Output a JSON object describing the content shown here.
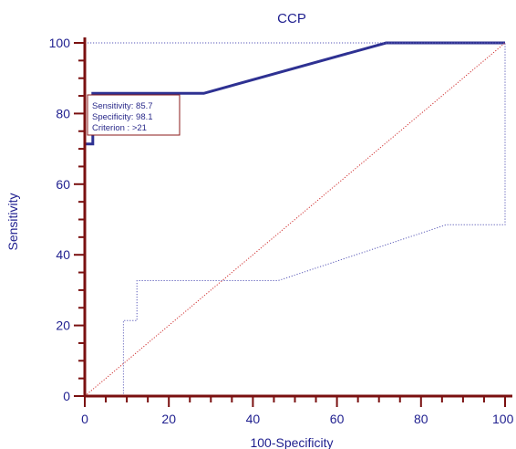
{
  "chart_data": {
    "type": "line",
    "title": "CCP",
    "xlabel": "100-Specificity",
    "ylabel": "Sensitivity",
    "xlim": [
      0,
      100
    ],
    "ylim": [
      0,
      100
    ],
    "x_ticks": [
      "0",
      "20",
      "40",
      "60",
      "80",
      "100"
    ],
    "y_ticks": [
      "0",
      "20",
      "40",
      "60",
      "80",
      "100"
    ],
    "grid": false,
    "series": [
      {
        "role": "roc_curve",
        "style": "solid",
        "color": "#2e3192",
        "x": [
          0,
          0,
          0,
          1.9,
          1.9,
          28.3,
          71.7,
          100
        ],
        "y": [
          0,
          71.4,
          71.4,
          71.4,
          85.7,
          85.7,
          100,
          100
        ]
      },
      {
        "role": "upper_confidence_bound",
        "style": "dotted",
        "color": "#5a5ab8",
        "x": [
          0,
          0,
          100,
          100
        ],
        "y": [
          0,
          100,
          100,
          100
        ]
      },
      {
        "role": "lower_confidence_bound",
        "style": "dotted",
        "color": "#5a5ab8",
        "x": [
          0,
          9.2,
          9.2,
          12.4,
          12.4,
          46,
          86,
          100,
          100
        ],
        "y": [
          0,
          0,
          21.4,
          21.4,
          32.7,
          32.7,
          48.5,
          48.5,
          100
        ]
      },
      {
        "role": "reference_diagonal",
        "style": "dotted",
        "color": "#d03030",
        "x": [
          0,
          100
        ],
        "y": [
          0,
          100
        ]
      }
    ],
    "annotation": {
      "lines": [
        "Sensitivity: 85.7",
        "Specificity: 98.1",
        "Criterion : >21"
      ],
      "border_color": "#8b1a1a"
    },
    "axis_color": "#7a1010"
  }
}
